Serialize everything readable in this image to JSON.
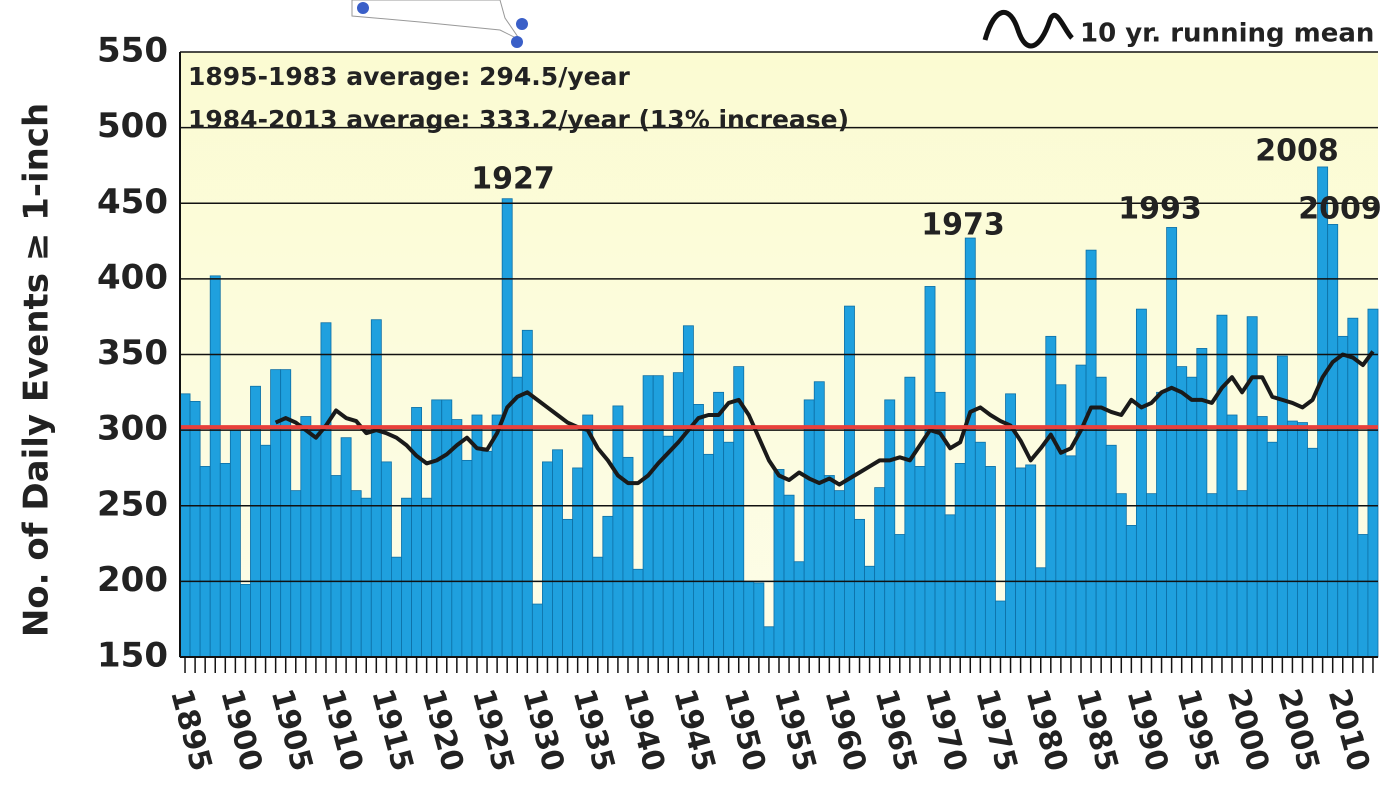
{
  "chart_data": {
    "type": "bar",
    "y_label": "No. of Daily Events ≥ 1-inch",
    "categories": [
      "1895",
      null,
      null,
      null,
      null,
      "1900",
      null,
      null,
      null,
      null,
      "1905",
      null,
      null,
      null,
      null,
      "1910",
      null,
      null,
      null,
      null,
      "1915",
      null,
      null,
      null,
      null,
      "1920",
      null,
      null,
      null,
      null,
      "1925",
      null,
      null,
      null,
      null,
      "1930",
      null,
      null,
      null,
      null,
      "1935",
      null,
      null,
      null,
      null,
      "1940",
      null,
      null,
      null,
      null,
      "1945",
      null,
      null,
      null,
      null,
      "1950",
      null,
      null,
      null,
      null,
      "1955",
      null,
      null,
      null,
      null,
      "1960",
      null,
      null,
      null,
      null,
      "1965",
      null,
      null,
      null,
      null,
      "1970",
      null,
      null,
      null,
      null,
      "1975",
      null,
      null,
      null,
      null,
      "1980",
      null,
      null,
      null,
      null,
      "1985",
      null,
      null,
      null,
      null,
      "1990",
      null,
      null,
      null,
      null,
      "1995",
      null,
      null,
      null,
      null,
      "2000",
      null,
      null,
      null,
      null,
      "2005",
      null,
      null,
      null,
      null,
      "2010",
      null,
      null,
      null
    ],
    "series": [
      {
        "name": "Daily events",
        "color": "#1fa0de",
        "values": [
          324,
          319,
          276,
          402,
          278,
          300,
          198,
          329,
          290,
          340,
          340,
          260,
          309,
          302,
          371,
          270,
          295,
          260,
          255,
          373,
          279,
          216,
          255,
          315,
          255,
          320,
          320,
          307,
          280,
          310,
          286,
          310,
          453,
          335,
          366,
          185,
          279,
          287,
          241,
          275,
          310,
          216,
          243,
          316,
          282,
          208,
          336,
          336,
          296,
          338,
          369,
          317,
          284,
          325,
          292,
          342,
          200,
          199,
          170,
          274,
          257,
          213,
          320,
          332,
          270,
          260,
          382,
          241,
          210,
          262,
          320,
          231,
          335,
          276,
          395,
          325,
          244,
          278,
          427,
          292,
          276,
          187,
          324,
          275,
          277,
          209,
          362,
          330,
          283,
          343,
          419,
          335,
          290,
          258,
          237,
          380,
          258,
          325,
          434,
          342,
          335,
          354,
          258,
          376,
          310,
          260,
          375,
          309,
          292,
          349,
          306,
          305,
          288,
          474,
          436,
          362,
          374,
          231,
          380
        ]
      },
      {
        "name": "10 yr. running mean",
        "type": "line",
        "color": "#1a1a1a",
        "values": [
          null,
          null,
          null,
          null,
          null,
          null,
          null,
          null,
          null,
          305,
          308,
          305,
          300,
          295,
          303,
          313,
          308,
          306,
          298,
          300,
          298,
          295,
          290,
          283,
          278,
          280,
          284,
          290,
          295,
          288,
          287,
          298,
          315,
          322,
          325,
          320,
          315,
          310,
          305,
          302,
          300,
          288,
          280,
          270,
          265,
          265,
          270,
          278,
          285,
          292,
          300,
          308,
          310,
          310,
          318,
          320,
          310,
          295,
          280,
          270,
          267,
          272,
          268,
          265,
          268,
          264,
          268,
          272,
          276,
          280,
          280,
          282,
          280,
          290,
          300,
          298,
          288,
          292,
          312,
          315,
          310,
          306,
          303,
          293,
          280,
          288,
          297,
          285,
          288,
          300,
          315,
          315,
          312,
          310,
          320,
          315,
          318,
          325,
          328,
          325,
          320,
          320,
          318,
          328,
          335,
          325,
          335,
          335,
          322,
          320,
          318,
          315,
          320,
          335,
          345,
          350,
          348,
          343,
          352
        ]
      }
    ],
    "average_line": {
      "value": 302,
      "color": "#e8403c"
    },
    "annotations": [
      "1895-1983 average: 294.5/year",
      "1984-2013 average: 333.2/year (13% increase)",
      "1927",
      "1973",
      "1993",
      "2008",
      "2009"
    ],
    "ylim": [
      150,
      550
    ],
    "yticks": [
      150,
      200,
      250,
      300,
      350,
      400,
      450,
      500,
      550
    ],
    "grid": true
  }
}
